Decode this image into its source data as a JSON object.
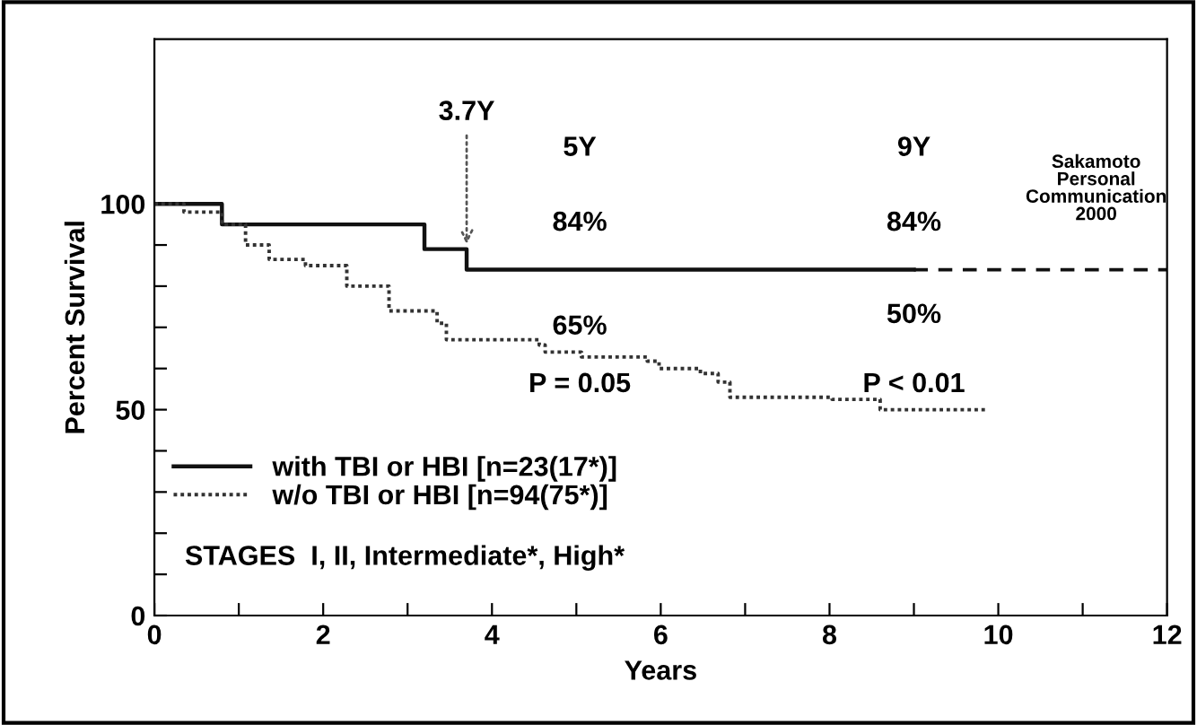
{
  "chart_data": {
    "type": "step",
    "xlabel": "Years",
    "ylabel": "Percent Survival",
    "xlim": [
      0,
      12
    ],
    "ylim": [
      0,
      140
    ],
    "xticks": [
      0,
      {
        "value": 1,
        "label": null
      },
      2,
      {
        "value": 3,
        "label": null
      },
      4,
      {
        "value": 5,
        "label": null
      },
      6,
      {
        "value": 7,
        "label": null
      },
      8,
      {
        "value": 9,
        "label": null
      },
      10,
      {
        "value": 11,
        "label": null
      },
      12
    ],
    "yticks": [
      0,
      {
        "value": 10,
        "label": null
      },
      {
        "value": 20,
        "label": null
      },
      {
        "value": 30,
        "label": null
      },
      {
        "value": 40,
        "label": null
      },
      50,
      {
        "value": 60,
        "label": null
      },
      {
        "value": 70,
        "label": null
      },
      {
        "value": 80,
        "label": null
      },
      {
        "value": 90,
        "label": null
      },
      100
    ],
    "grid": false,
    "legend": "bottom left",
    "marker": "none",
    "series": [
      {
        "name": "with TBI or HBI [n=23(17*)]",
        "color": "#111111",
        "line_style": "solid",
        "x": [
          0,
          0.8,
          3.2,
          3.7,
          9
        ],
        "values": [
          100,
          95,
          89,
          84,
          84
        ]
      },
      {
        "name": "w/o TBI or HBI [n=94(75*)]",
        "color": "#333333",
        "line_style": "dotted",
        "x": [
          0,
          0.35,
          0.8,
          1.08,
          1.36,
          1.79,
          2.28,
          2.78,
          3.35,
          3.46,
          4.56,
          4.63,
          5.06,
          5.84,
          5.98,
          6.47,
          6.68,
          6.82,
          8.03,
          8.6,
          9.87
        ],
        "values": [
          100,
          98,
          95,
          90,
          86.5,
          85,
          80,
          74,
          71,
          67,
          65.7,
          64,
          62.8,
          61.8,
          60,
          58.8,
          56.7,
          53,
          52.5,
          50,
          50
        ]
      },
      {
        "type": "line",
        "color": "#111111",
        "line_style": "dashed",
        "x": [
          9,
          12
        ],
        "values": [
          84,
          84
        ]
      }
    ],
    "annotations": [
      {
        "text": "3.7Y",
        "x": 3.7,
        "y": 89
      },
      "5Y",
      "9Y",
      "84%",
      "84%",
      "65%",
      "50%",
      "P = 0.05",
      "P < 0.01",
      "STAGES  I, II, Intermediate*, High*",
      "Sakamoto\nPersonal\nCommunication\n2000"
    ]
  }
}
